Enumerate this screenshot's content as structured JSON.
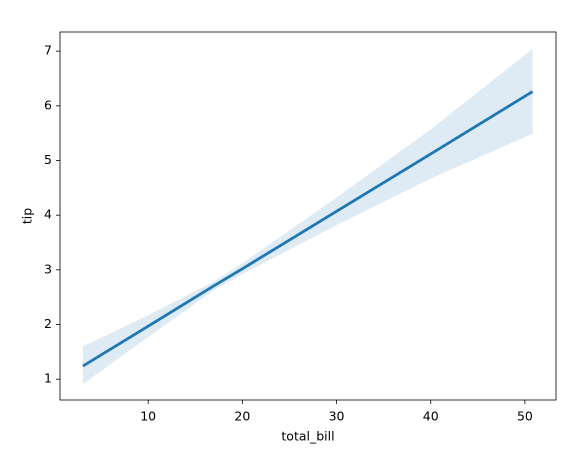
{
  "chart_data": {
    "type": "line",
    "xlabel": "total_bill",
    "ylabel": "tip",
    "x": [
      3.07,
      10,
      17,
      20,
      30,
      40,
      50.81
    ],
    "values": [
      1.24,
      1.97,
      2.71,
      3.02,
      4.07,
      5.12,
      6.26
    ],
    "ci_upper": [
      1.6,
      2.17,
      2.79,
      3.12,
      4.32,
      5.57,
      7.04
    ],
    "ci_lower": [
      0.91,
      1.77,
      2.63,
      2.92,
      3.82,
      4.67,
      5.49
    ],
    "color": "#1f77b4",
    "xlim": [
      0.64,
      53.3
    ],
    "ylim": [
      0.62,
      7.35
    ],
    "xticks": [
      10,
      20,
      30,
      40,
      50
    ],
    "yticks": [
      1,
      2,
      3,
      4,
      5,
      6,
      7
    ],
    "grid": false
  }
}
